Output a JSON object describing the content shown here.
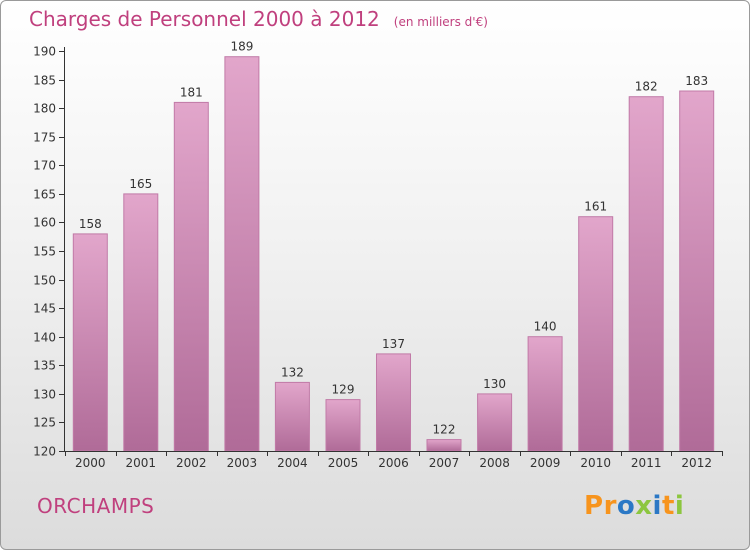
{
  "title": "Charges de Personnel 2000 à 2012",
  "subtitle": "(en milliers d'€)",
  "commune": "ORCHAMPS",
  "logo": {
    "text": "Proxiti",
    "letters": [
      {
        "ch": "P",
        "color": "#f7941d"
      },
      {
        "ch": "r",
        "color": "#f7941d"
      },
      {
        "ch": "o",
        "color": "#2b78c5"
      },
      {
        "ch": "x",
        "color": "#8cc63f"
      },
      {
        "ch": "i",
        "color": "#2b78c5"
      },
      {
        "ch": "t",
        "color": "#f7941d"
      },
      {
        "ch": "i",
        "color": "#8cc63f"
      }
    ]
  },
  "colors": {
    "accent": "#c0407e",
    "bar_top": "#e2a6cb",
    "bar_bottom": "#b06b98",
    "bar_edge": "#c17aa7"
  },
  "chart_data": {
    "type": "bar",
    "categories": [
      "2000",
      "2001",
      "2002",
      "2003",
      "2004",
      "2005",
      "2006",
      "2007",
      "2008",
      "2009",
      "2010",
      "2011",
      "2012"
    ],
    "values": [
      158,
      165,
      181,
      189,
      132,
      129,
      137,
      122,
      130,
      140,
      161,
      182,
      183
    ],
    "ylim": [
      120,
      190
    ],
    "yticks": [
      120,
      125,
      130,
      135,
      140,
      145,
      150,
      155,
      160,
      165,
      170,
      175,
      180,
      185,
      190
    ],
    "grid": false
  }
}
